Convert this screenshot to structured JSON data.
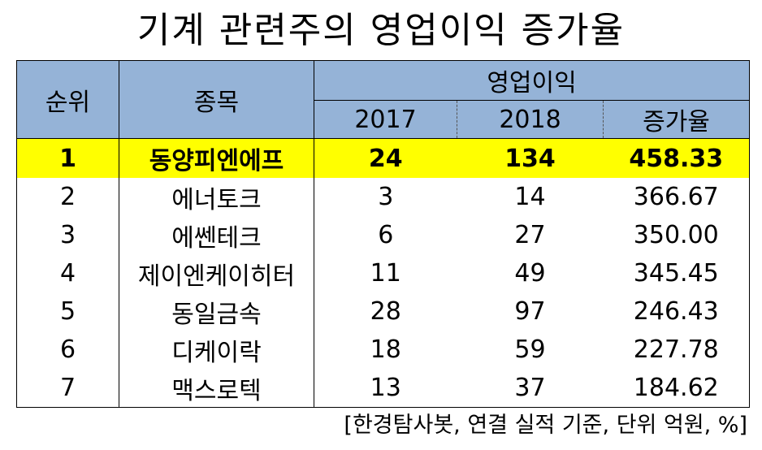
{
  "title": "기계 관련주의 영업이익 증가율",
  "header": {
    "rank": "순위",
    "name": "종목",
    "group": "영업이익",
    "y1": "2017",
    "y2": "2018",
    "increase": "증가율"
  },
  "rows": [
    {
      "rank": "1",
      "name": "동양피엔에프",
      "y1": "24",
      "y2": "134",
      "increase": "458.33"
    },
    {
      "rank": "2",
      "name": "에너토크",
      "y1": "3",
      "y2": "14",
      "increase": "366.67"
    },
    {
      "rank": "3",
      "name": "에쎈테크",
      "y1": "6",
      "y2": "27",
      "increase": "350.00"
    },
    {
      "rank": "4",
      "name": "제이엔케이히터",
      "y1": "11",
      "y2": "49",
      "increase": "345.45"
    },
    {
      "rank": "5",
      "name": "동일금속",
      "y1": "28",
      "y2": "97",
      "increase": "246.43"
    },
    {
      "rank": "6",
      "name": "디케이락",
      "y1": "18",
      "y2": "59",
      "increase": "227.78"
    },
    {
      "rank": "7",
      "name": "맥스로텍",
      "y1": "13",
      "y2": "37",
      "increase": "184.62"
    }
  ],
  "source": "[한경탐사봇, 연결 실적 기준, 단위 억원, %]",
  "colors": {
    "header_bg": "#95b3d7",
    "highlight_bg": "#ffff00"
  }
}
